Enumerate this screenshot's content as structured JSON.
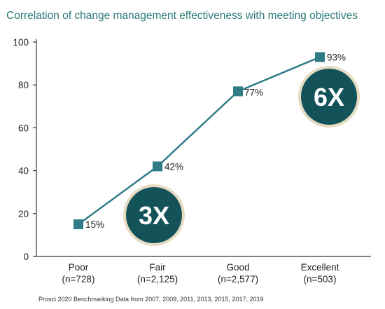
{
  "title": "Correlation of change management effectiveness with meeting objectives",
  "source": "Prosci 2020 Benchmarking Data from 2007, 2009, 2011, 2013, 2015, 2017, 2019",
  "colors": {
    "title": "#2a7a74",
    "line": "#2f7b86",
    "badge_fill": "#14525a",
    "badge_ring": "#e6dcc2"
  },
  "chart_data": {
    "type": "line",
    "title": "Correlation of change management effectiveness with meeting objectives",
    "xlabel": "",
    "ylabel": "",
    "ylim": [
      0,
      100
    ],
    "yticks": [
      "0",
      "20",
      "40",
      "60",
      "80",
      "100"
    ],
    "grid": false,
    "categories": [
      {
        "name": "Poor",
        "n": "(n=728)"
      },
      {
        "name": "Fair",
        "n": "(n=2,125)"
      },
      {
        "name": "Good",
        "n": "(n=2,577)"
      },
      {
        "name": "Excellent",
        "n": "(n=503)"
      }
    ],
    "values": [
      15,
      42,
      77,
      93
    ],
    "data_labels": [
      "15%",
      "42%",
      "77%",
      "93%"
    ],
    "annotations": [
      {
        "text": "3X"
      },
      {
        "text": "6X"
      }
    ]
  }
}
